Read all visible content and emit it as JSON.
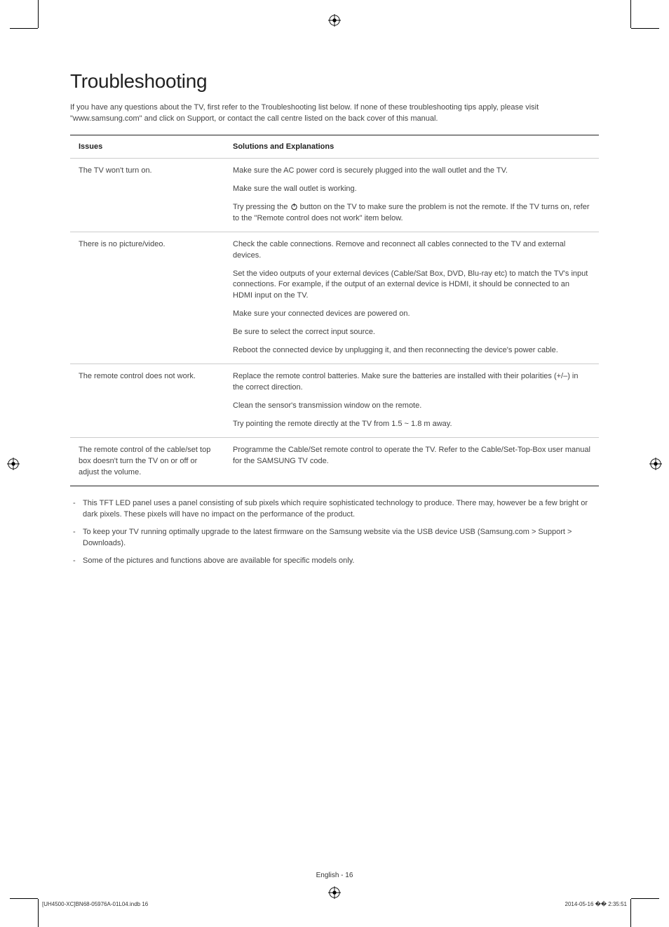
{
  "heading": "Troubleshooting",
  "intro": "If you have any questions about the TV, first refer to the Troubleshooting list below. If none of these troubleshooting tips apply, please visit \"www.samsung.com\" and click on Support, or contact the call centre listed on the back cover of this manual.",
  "table": {
    "header_issues": "Issues",
    "header_solutions": "Solutions and Explanations",
    "rows": [
      {
        "issue": "The TV won't turn on.",
        "solutions": [
          "Make sure the AC power cord is securely plugged into the wall outlet and the TV.",
          "Make sure the wall outlet is working.",
          "__POWER__Try pressing the __ICON__ button on the TV to make sure the problem is not the remote. If the TV turns on, refer to the \"Remote control does not work\" item below."
        ]
      },
      {
        "issue": "There is no picture/video.",
        "solutions": [
          "Check the cable connections. Remove and reconnect all cables connected to the TV and external devices.",
          "Set the video outputs of your external devices (Cable/Sat Box, DVD, Blu-ray etc) to match the TV's input connections. For example, if the output of an external device is HDMI, it should be connected to an HDMI input on the TV.",
          "Make sure your connected devices are powered on.",
          "Be sure to select the correct input source.",
          "Reboot the connected device by unplugging it, and then reconnecting the device's power cable."
        ]
      },
      {
        "issue": "The remote control does not work.",
        "solutions": [
          "Replace the remote control batteries. Make sure the batteries are installed with their polarities (+/–) in the correct direction.",
          "Clean the sensor's transmission window on the remote.",
          "Try pointing the remote directly at the TV from 1.5 ~ 1.8 m away."
        ]
      },
      {
        "issue": "The remote control of the cable/set top box doesn't turn the TV on or off or adjust the volume.",
        "solutions": [
          "Programme the Cable/Set remote control to operate the TV. Refer to the Cable/Set-Top-Box user manual for the SAMSUNG TV code."
        ]
      }
    ]
  },
  "notes": [
    "This TFT LED panel uses a panel consisting of sub pixels which require sophisticated technology to produce. There may, however be a few bright or dark pixels. These pixels will have no impact on the performance of the product.",
    "To keep your TV running optimally upgrade to the latest firmware on the Samsung website via the USB device USB (Samsung.com > Support > Downloads).",
    "Some of the pictures and functions above are available for specific models only."
  ],
  "footer": {
    "page": "English - 16",
    "left": "[UH4500-XC]BN68-05976A-01L04.indb   16",
    "right": "2014-05-16   �� 2:35:51"
  },
  "colors": {
    "text": "#333333",
    "border_dark": "#222222",
    "border_light": "#cccccc",
    "background": "#ffffff"
  }
}
